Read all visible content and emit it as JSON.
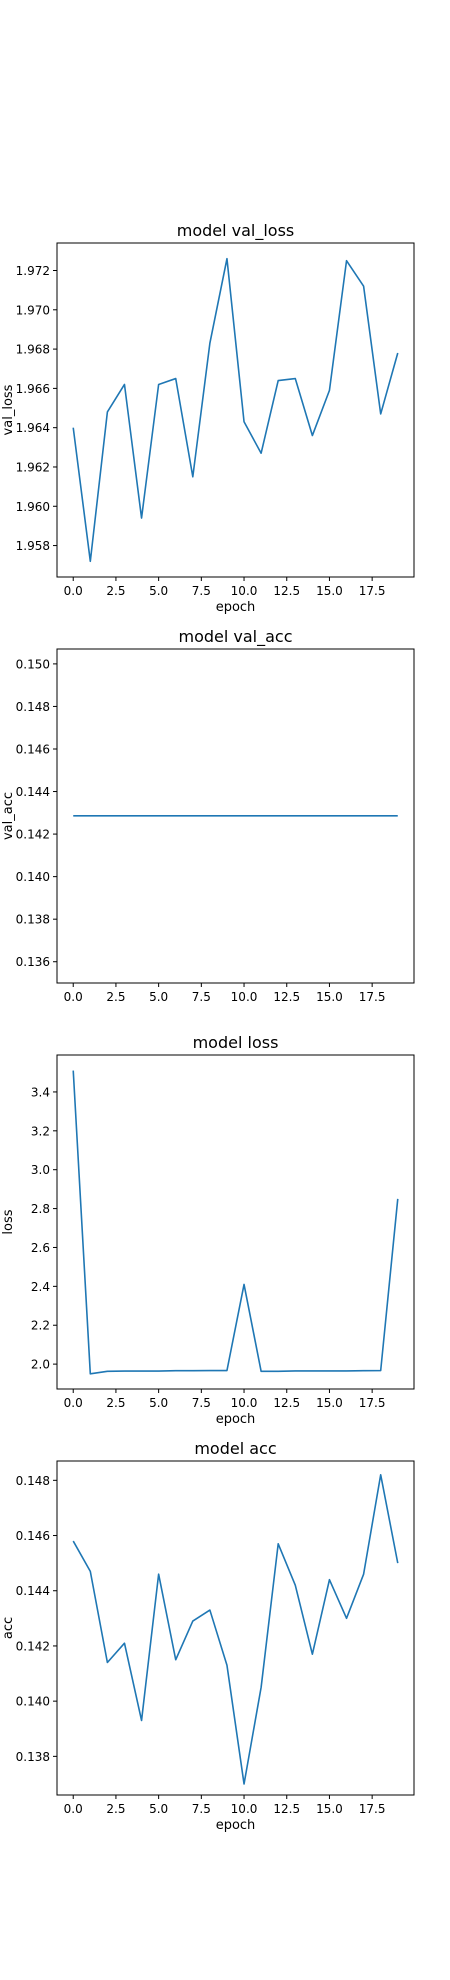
{
  "chart_data": [
    {
      "type": "line",
      "title": "model val_loss",
      "xlabel": "epoch",
      "ylabel": "val_loss",
      "xlim": [
        -0.95,
        19.95
      ],
      "ylim": [
        1.9564,
        1.9734
      ],
      "x_ticks": [
        0,
        2.5,
        5,
        7.5,
        10,
        12.5,
        15,
        17.5
      ],
      "x_tick_labels": [
        "0.0",
        "2.5",
        "5.0",
        "7.5",
        "10.0",
        "12.5",
        "15.0",
        "17.5"
      ],
      "y_ticks": [
        1.958,
        1.96,
        1.962,
        1.964,
        1.966,
        1.968,
        1.97,
        1.972
      ],
      "y_tick_labels": [
        "1.958",
        "1.960",
        "1.962",
        "1.964",
        "1.966",
        "1.968",
        "1.970",
        "1.972"
      ],
      "grid": false,
      "color": "#1f77b4",
      "series": [
        {
          "x": [
            0,
            1,
            2,
            3,
            4,
            5,
            6,
            7,
            8,
            9,
            10,
            11,
            12,
            13,
            14,
            15,
            16,
            17,
            18,
            19
          ],
          "y": [
            1.964,
            1.9572,
            1.9648,
            1.9662,
            1.9594,
            1.9662,
            1.9665,
            1.9615,
            1.9683,
            1.9726,
            1.9643,
            1.9627,
            1.9664,
            1.9665,
            1.9636,
            1.9659,
            1.9725,
            1.9712,
            1.9647,
            1.9678
          ]
        }
      ]
    },
    {
      "type": "line",
      "title": "model val_acc",
      "xlabel": "",
      "ylabel": "val_acc",
      "xlim": [
        -0.95,
        19.95
      ],
      "ylim": [
        0.135,
        0.1507
      ],
      "x_ticks": [
        0,
        2.5,
        5,
        7.5,
        10,
        12.5,
        15,
        17.5
      ],
      "x_tick_labels": [
        "0.0",
        "2.5",
        "5.0",
        "7.5",
        "10.0",
        "12.5",
        "15.0",
        "17.5"
      ],
      "y_ticks": [
        0.136,
        0.138,
        0.14,
        0.142,
        0.144,
        0.146,
        0.148,
        0.15
      ],
      "y_tick_labels": [
        "0.136",
        "0.138",
        "0.140",
        "0.142",
        "0.144",
        "0.146",
        "0.148",
        "0.150"
      ],
      "grid": false,
      "color": "#1f77b4",
      "series": [
        {
          "x": [
            0,
            1,
            2,
            3,
            4,
            5,
            6,
            7,
            8,
            9,
            10,
            11,
            12,
            13,
            14,
            15,
            16,
            17,
            18,
            19
          ],
          "y": [
            0.14286,
            0.14286,
            0.14286,
            0.14286,
            0.14286,
            0.14286,
            0.14286,
            0.14286,
            0.14286,
            0.14286,
            0.14286,
            0.14286,
            0.14286,
            0.14286,
            0.14286,
            0.14286,
            0.14286,
            0.14286,
            0.14286,
            0.14286
          ]
        }
      ]
    },
    {
      "type": "line",
      "title": "model loss",
      "xlabel": "epoch",
      "ylabel": "loss",
      "xlim": [
        -0.95,
        19.95
      ],
      "ylim": [
        1.872,
        3.59
      ],
      "x_ticks": [
        0,
        2.5,
        5,
        7.5,
        10,
        12.5,
        15,
        17.5
      ],
      "x_tick_labels": [
        "0.0",
        "2.5",
        "5.0",
        "7.5",
        "10.0",
        "12.5",
        "15.0",
        "17.5"
      ],
      "y_ticks": [
        2.0,
        2.2,
        2.4,
        2.6,
        2.8,
        3.0,
        3.2,
        3.4
      ],
      "y_tick_labels": [
        "2.0",
        "2.2",
        "2.4",
        "2.6",
        "2.8",
        "3.0",
        "3.2",
        "3.4"
      ],
      "grid": false,
      "color": "#1f77b4",
      "series": [
        {
          "x": [
            0,
            1,
            2,
            3,
            4,
            5,
            6,
            7,
            8,
            9,
            10,
            11,
            12,
            13,
            14,
            15,
            16,
            17,
            18,
            19
          ],
          "y": [
            3.51,
            1.95,
            1.963,
            1.964,
            1.964,
            1.964,
            1.966,
            1.966,
            1.967,
            1.967,
            2.41,
            1.963,
            1.963,
            1.965,
            1.965,
            1.965,
            1.965,
            1.966,
            1.967,
            2.85
          ]
        }
      ]
    },
    {
      "type": "line",
      "title": "model acc",
      "xlabel": "epoch",
      "ylabel": "acc",
      "xlim": [
        -0.95,
        19.95
      ],
      "ylim": [
        0.1366,
        0.1487
      ],
      "x_ticks": [
        0,
        2.5,
        5,
        7.5,
        10,
        12.5,
        15,
        17.5
      ],
      "x_tick_labels": [
        "0.0",
        "2.5",
        "5.0",
        "7.5",
        "10.0",
        "12.5",
        "15.0",
        "17.5"
      ],
      "y_ticks": [
        0.138,
        0.14,
        0.142,
        0.144,
        0.146,
        0.148
      ],
      "y_tick_labels": [
        "0.138",
        "0.140",
        "0.142",
        "0.144",
        "0.146",
        "0.148"
      ],
      "grid": false,
      "color": "#1f77b4",
      "series": [
        {
          "x": [
            0,
            1,
            2,
            3,
            4,
            5,
            6,
            7,
            8,
            9,
            10,
            11,
            12,
            13,
            14,
            15,
            16,
            17,
            18,
            19
          ],
          "y": [
            0.1458,
            0.1447,
            0.1414,
            0.1421,
            0.1393,
            0.1446,
            0.1415,
            0.1429,
            0.1433,
            0.1413,
            0.137,
            0.1405,
            0.1457,
            0.1442,
            0.1417,
            0.1444,
            0.143,
            0.1446,
            0.1482,
            0.145
          ]
        }
      ]
    }
  ]
}
